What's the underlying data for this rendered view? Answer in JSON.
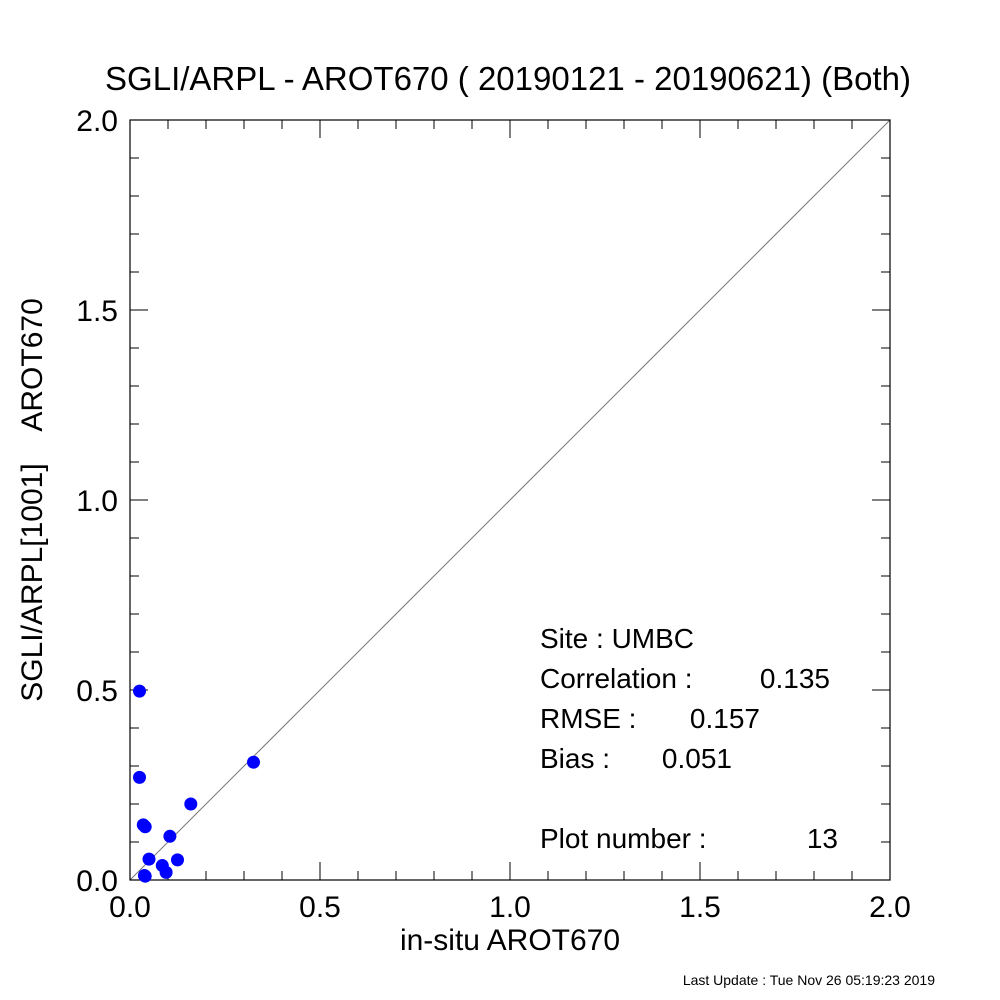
{
  "chart_data": {
    "type": "scatter",
    "title": "SGLI/ARPL - AROT670 ( 20190121 - 20190621) (Both)",
    "xlabel": "in-situ AROT670",
    "ylabel": "SGLI/ARPL[1001]    AROT670",
    "xlim": [
      0.0,
      2.0
    ],
    "ylim": [
      0.0,
      2.0
    ],
    "xticks": [
      "0.0",
      "0.5",
      "1.0",
      "1.5",
      "2.0"
    ],
    "yticks": [
      "0.0",
      "0.5",
      "1.0",
      "1.5",
      "2.0"
    ],
    "grid": false,
    "reference_line": "1:1",
    "point_color": "#0000ff",
    "points": [
      {
        "x": 0.025,
        "y": 0.497
      },
      {
        "x": 0.025,
        "y": 0.27
      },
      {
        "x": 0.035,
        "y": 0.145
      },
      {
        "x": 0.04,
        "y": 0.14
      },
      {
        "x": 0.04,
        "y": 0.01
      },
      {
        "x": 0.05,
        "y": 0.055
      },
      {
        "x": 0.085,
        "y": 0.038
      },
      {
        "x": 0.095,
        "y": 0.02
      },
      {
        "x": 0.105,
        "y": 0.115
      },
      {
        "x": 0.125,
        "y": 0.053
      },
      {
        "x": 0.16,
        "y": 0.2
      },
      {
        "x": 0.325,
        "y": 0.31
      },
      {
        "x": 0.038,
        "y": 0.012
      }
    ],
    "annotations": [
      {
        "label": "Site : UMBC",
        "value": ""
      },
      {
        "label": "Correlation :",
        "value": "0.135"
      },
      {
        "label": "RMSE :",
        "value": "0.157"
      },
      {
        "label": "Bias :",
        "value": "0.051"
      },
      {
        "label": "Plot number :",
        "value": "13"
      }
    ]
  },
  "footer": "Last Update : Tue Nov 26 05:19:23 2019"
}
